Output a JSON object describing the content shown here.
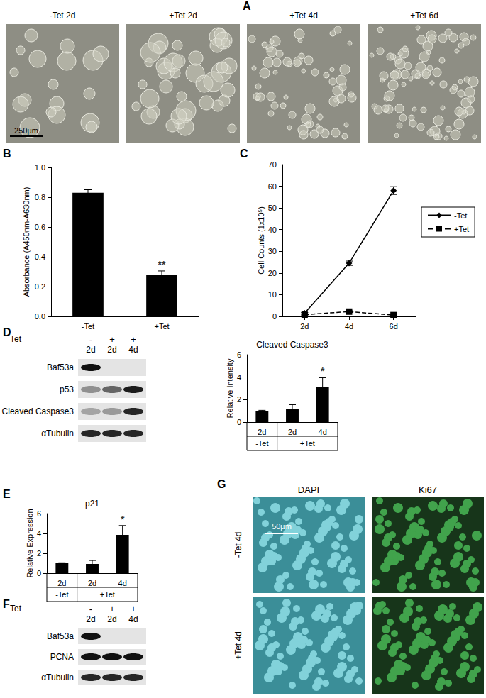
{
  "figure": {
    "panel_labels": [
      "A",
      "B",
      "C",
      "D",
      "E",
      "F",
      "G"
    ],
    "panel_a": {
      "images": [
        "-Tet 2d",
        "+Tet 2d",
        "+Tet 4d",
        "+Tet 6d"
      ],
      "scale_bar": "250µm"
    },
    "blot_d": {
      "header": "Tet",
      "lanes": [
        {
          "tet": "-",
          "day": "2d"
        },
        {
          "tet": "+",
          "day": "2d"
        },
        {
          "tet": "+",
          "day": "4d"
        }
      ],
      "rows": [
        {
          "label": "Baf53a",
          "bands": [
            1,
            0,
            0
          ]
        },
        {
          "label": "p53",
          "bands": [
            0.4,
            0.6,
            0.95
          ]
        },
        {
          "label": "Cleaved Caspase3",
          "bands": [
            0.3,
            0.35,
            0.9
          ]
        },
        {
          "label": "αTubulin",
          "bands": [
            0.9,
            0.9,
            0.9
          ]
        }
      ]
    },
    "blot_f": {
      "header": "Tet",
      "lanes": [
        {
          "tet": "-",
          "day": "2d"
        },
        {
          "tet": "+",
          "day": "2d"
        },
        {
          "tet": "+",
          "day": "4d"
        }
      ],
      "rows": [
        {
          "label": "Baf53a",
          "bands": [
            1,
            0,
            0
          ]
        },
        {
          "label": "PCNA",
          "bands": [
            1,
            1,
            1
          ]
        },
        {
          "label": "αTubulin",
          "bands": [
            0.9,
            0.9,
            0.9
          ]
        }
      ]
    },
    "panel_g": {
      "columns": [
        "DAPI",
        "Ki67"
      ],
      "rows": [
        "-Tet 4d",
        "+Tet 4d"
      ],
      "scale_bar": "50µm"
    }
  },
  "chart_data": [
    {
      "type": "bar",
      "y_label": "Absorbance (A450nm-A630nm)",
      "categories": [
        "-Tet",
        "+Tet"
      ],
      "values": [
        0.83,
        0.28
      ],
      "errors": [
        0.02,
        0.025
      ],
      "annotations": [
        null,
        "**"
      ],
      "color": "#000000",
      "grid": false,
      "ylim": [
        0,
        1.0
      ],
      "yticks": [
        {
          "value": 0,
          "label": "0.0"
        },
        {
          "value": 0.2,
          "label": "0.2"
        },
        {
          "value": 0.4,
          "label": "0.4"
        },
        {
          "value": 0.6,
          "label": "0.6"
        },
        {
          "value": 0.8,
          "label": "0.8"
        },
        {
          "value": 1.0,
          "label": "1.0"
        }
      ]
    },
    {
      "type": "line",
      "y_label": "Cell Counts (1x10⁵)",
      "categories": [
        "2d",
        "4d",
        "6d"
      ],
      "series": [
        {
          "name": "-Tet",
          "color": "#000000",
          "marker": "diamond",
          "line_style": "solid",
          "values": [
            1.5,
            24.5,
            58
          ],
          "errors": [
            0.3,
            1.0,
            1.8
          ]
        },
        {
          "name": "+Tet",
          "color": "#000000",
          "marker": "square",
          "line_style": "dashed",
          "values": [
            0.8,
            2.2,
            0.6
          ],
          "errors": [
            0.2,
            0.4,
            0.2
          ]
        }
      ],
      "legend": "right",
      "grid": false,
      "ylim": [
        0,
        70
      ],
      "yticks": [
        0,
        10,
        20,
        30,
        40,
        50,
        60,
        70
      ]
    },
    {
      "type": "bar",
      "title": "Cleaved Caspase3",
      "y_label": "Relative Intensity",
      "categories": [
        "2d",
        "2d",
        "4d"
      ],
      "groups": [
        {
          "name": "-Tet",
          "count": 1
        },
        {
          "name": "+Tet",
          "count": 2
        }
      ],
      "values": [
        1,
        1.2,
        3.15
      ],
      "errors": [
        0.05,
        0.35,
        0.8
      ],
      "annotations": [
        null,
        null,
        "*"
      ],
      "color": "#000000",
      "grid": false,
      "ylim": [
        0,
        6
      ],
      "yticks": [
        0,
        2,
        4,
        6
      ]
    },
    {
      "type": "bar",
      "title": "p21",
      "y_label": "Relative Expression",
      "categories": [
        "2d",
        "2d",
        "4d"
      ],
      "groups": [
        {
          "name": "-Tet",
          "count": 1
        },
        {
          "name": "+Tet",
          "count": 2
        }
      ],
      "values": [
        1,
        0.93,
        3.85
      ],
      "errors": [
        0.05,
        0.35,
        0.95
      ],
      "annotations": [
        null,
        null,
        "*"
      ],
      "color": "#000000",
      "grid": false,
      "ylim": [
        0,
        6
      ],
      "yticks": [
        0,
        2,
        4,
        6
      ]
    }
  ]
}
